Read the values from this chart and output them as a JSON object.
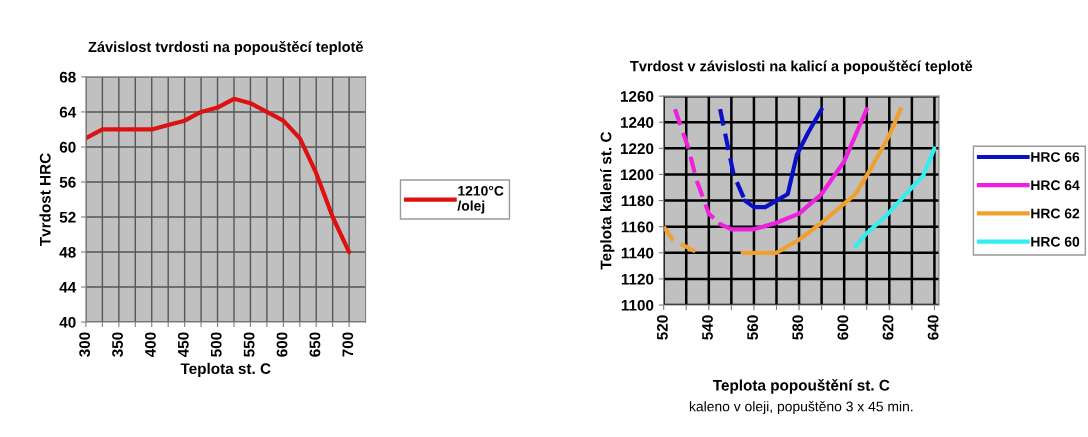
{
  "chart_data": [
    {
      "type": "line",
      "title": "Závislost tvrdosti na popouštěcí teplotě",
      "xlabel": "Teplota st. C",
      "ylabel": "Tvrdost HRC",
      "x": [
        300,
        325,
        350,
        375,
        400,
        425,
        450,
        475,
        500,
        525,
        550,
        575,
        600,
        625,
        650,
        675,
        700
      ],
      "series": [
        {
          "name": "1210°C\n/olej",
          "color": "#dd1111",
          "values": [
            61,
            62,
            62,
            62,
            62,
            62.5,
            63,
            64,
            64.5,
            65.5,
            65,
            64,
            63,
            61,
            57,
            52,
            48
          ]
        }
      ],
      "xlim": [
        300,
        725
      ],
      "xticks": [
        300,
        {
          "value": 325,
          "label": null
        },
        350,
        {
          "value": 375,
          "label": null
        },
        400,
        {
          "value": 425,
          "label": null
        },
        450,
        {
          "value": 475,
          "label": null
        },
        500,
        {
          "value": 525,
          "label": null
        },
        550,
        {
          "value": 575,
          "label": null
        },
        600,
        {
          "value": 625,
          "label": null
        },
        650,
        {
          "value": 675,
          "label": null
        },
        700
      ],
      "ylim": [
        40,
        68
      ],
      "yticks": [
        40,
        44,
        48,
        52,
        56,
        60,
        64,
        68
      ],
      "grid": true,
      "legend": "right",
      "line_style": "solid"
    },
    {
      "type": "line",
      "title": "Tvrdost v závislosti na kalicí a popouštěcí teplotě",
      "xlabel": "Teplota popouštění st. C",
      "ylabel": "Teplota kalení st. C",
      "annotations": [
        "kaleno v oleji, popuštěno 3 x 45 min."
      ],
      "series": [
        {
          "name": "HRC 66",
          "color": "#0a10c8",
          "x": [
            556,
            560,
            565,
            570,
            575,
            579,
            584,
            590
          ],
          "values": [
            1180,
            1175,
            1175,
            1180,
            1185,
            1215,
            1232,
            1250
          ]
        },
        {
          "color": "#0a10c8",
          "line_style": "dashed",
          "x": [
            545,
            548,
            551,
            556
          ],
          "values": [
            1250,
            1225,
            1200,
            1180
          ]
        },
        {
          "name": "HRC 64",
          "color": "#ee22dd",
          "x": [
            545,
            550,
            560,
            570,
            580,
            590,
            600,
            610
          ],
          "values": [
            1162,
            1158,
            1158,
            1163,
            1170,
            1185,
            1210,
            1250
          ]
        },
        {
          "color": "#ee22dd",
          "line_style": "dashed",
          "x": [
            525,
            531,
            534.5,
            540,
            545
          ],
          "values": [
            1250,
            1220,
            1196,
            1170,
            1162
          ]
        },
        {
          "name": "HRC 62",
          "color": "#f0a030",
          "x": [
            555,
            570,
            580,
            590,
            605,
            612,
            620,
            625
          ],
          "values": [
            1140,
            1140,
            1150,
            1163,
            1185,
            1205,
            1230,
            1250
          ]
        },
        {
          "color": "#f0a030",
          "line_style": "dashed",
          "x": [
            520,
            524,
            534
          ],
          "values": [
            1160,
            1150,
            1141
          ]
        },
        {
          "name": "HRC 60",
          "color": "#33eeee",
          "x": [
            605,
            610,
            619,
            630,
            635,
            640
          ],
          "values": [
            1145,
            1155,
            1169,
            1190,
            1199,
            1220
          ]
        }
      ],
      "xlim": [
        520,
        642
      ],
      "xticks": [
        520,
        {
          "value": 530,
          "label": null
        },
        540,
        {
          "value": 550,
          "label": null
        },
        560,
        {
          "value": 570,
          "label": null
        },
        580,
        {
          "value": 590,
          "label": null
        },
        600,
        {
          "value": 610,
          "label": null
        },
        620,
        {
          "value": 630,
          "label": null
        },
        640
      ],
      "ylim": [
        1100,
        1260
      ],
      "yticks": [
        1100,
        1120,
        1140,
        1160,
        1180,
        1200,
        1220,
        1240,
        1260
      ],
      "grid": true,
      "legend": "right",
      "line_style": "solid"
    }
  ]
}
